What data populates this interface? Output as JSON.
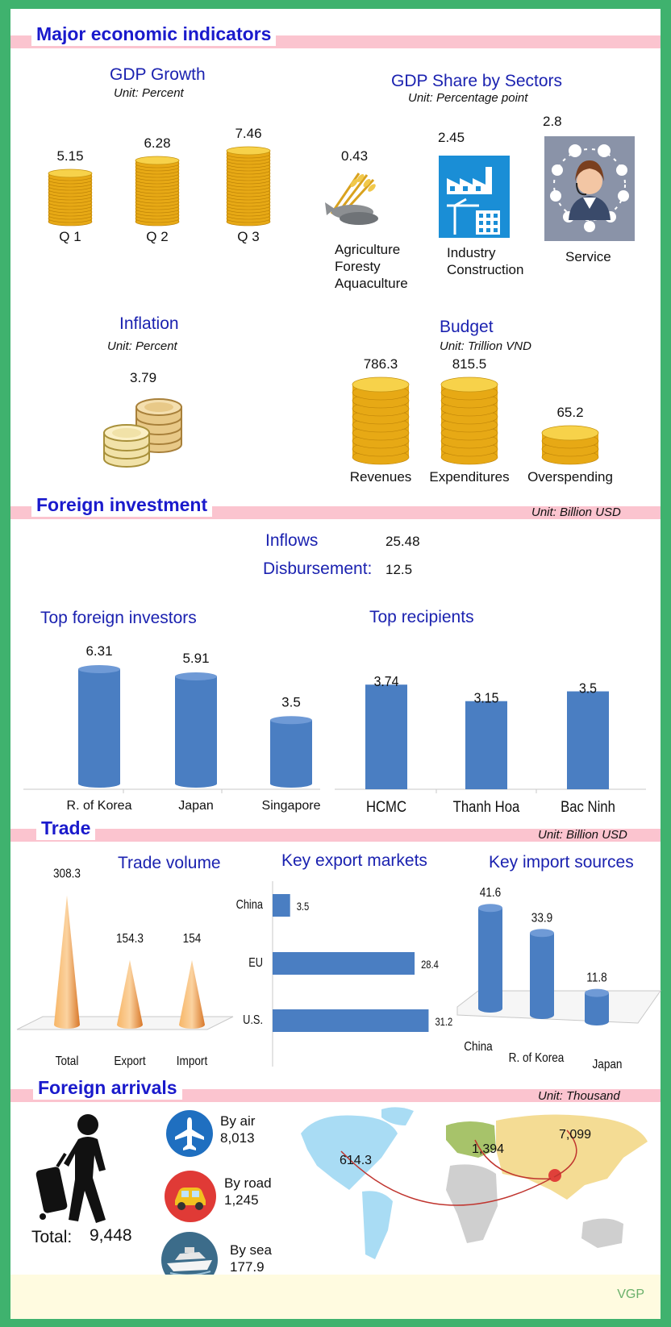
{
  "sections": {
    "economic": "Major economic indicators",
    "investment": "Foreign investment",
    "investment_unit": "Unit: Billion USD",
    "trade": "Trade",
    "trade_unit": "Unit: Billion USD",
    "arrivals": "Foreign arrivals",
    "arrivals_unit": "Unit: Thousand"
  },
  "gdp": {
    "title": "GDP Growth",
    "unit": "Unit: Percent",
    "items": [
      {
        "label": "Q 1",
        "value": "5.15"
      },
      {
        "label": "Q 2",
        "value": "6.28"
      },
      {
        "label": "Q 3",
        "value": "7.46"
      }
    ]
  },
  "sectors": {
    "title": "GDP Share by Sectors",
    "unit": "Unit: Percentage point",
    "items": [
      {
        "label_lines": [
          "Agriculture",
          "Foresty",
          "Aquaculture"
        ],
        "value": "0.43",
        "icon": "agriculture-icon"
      },
      {
        "label_lines": [
          "Industry",
          "Construction"
        ],
        "value": "2.45",
        "icon": "factory-icon"
      },
      {
        "label_lines": [
          "Service"
        ],
        "value": "2.8",
        "icon": "service-operator-icon"
      }
    ]
  },
  "inflation": {
    "title": "Inflation",
    "unit": "Unit: Percent",
    "value": "3.79"
  },
  "budget": {
    "title": "Budget",
    "unit": "Unit: Trillion VND",
    "items": [
      {
        "label": "Revenues",
        "value": "786.3"
      },
      {
        "label": "Expenditures",
        "value": "815.5"
      },
      {
        "label": "Overspending",
        "value": "65.2"
      }
    ]
  },
  "fdi": {
    "inflows_label": "Inflows",
    "inflows_value": "25.48",
    "disb_label": "Disbursement:",
    "disb_value": "12.5"
  },
  "chart_data": [
    {
      "type": "bar",
      "title": "GDP Growth",
      "categories": [
        "Q 1",
        "Q 2",
        "Q 3"
      ],
      "values": [
        5.15,
        6.28,
        7.46
      ]
    },
    {
      "type": "bar",
      "title": "GDP Share by Sectors",
      "categories": [
        "Agriculture Foresty Aquaculture",
        "Industry Construction",
        "Service"
      ],
      "values": [
        0.43,
        2.45,
        2.8
      ]
    },
    {
      "type": "bar",
      "title": "Budget",
      "categories": [
        "Revenues",
        "Expenditures",
        "Overspending"
      ],
      "values": [
        786.3,
        815.5,
        65.2
      ]
    },
    {
      "type": "bar",
      "title": "Top foreign investors",
      "categories": [
        "R. of Korea",
        "Japan",
        "Singapore"
      ],
      "values": [
        6.31,
        5.91,
        3.5
      ]
    },
    {
      "type": "bar",
      "title": "Top recipients",
      "categories": [
        "HCMC",
        "Thanh Hoa",
        "Bac Ninh"
      ],
      "values": [
        3.74,
        3.15,
        3.5
      ]
    },
    {
      "type": "bar",
      "title": "Trade volume",
      "categories": [
        "Total",
        "Export",
        "Import"
      ],
      "values": [
        308.3,
        154.3,
        154
      ]
    },
    {
      "type": "bar",
      "title": "Key export markets",
      "orientation": "horizontal",
      "categories": [
        "China",
        "EU",
        "U.S."
      ],
      "values": [
        3.5,
        28.4,
        31.2
      ]
    },
    {
      "type": "bar",
      "title": "Key import sources",
      "categories": [
        "China",
        "R. of Korea",
        "Japan"
      ],
      "values": [
        41.6,
        33.9,
        11.8
      ]
    }
  ],
  "arrivals": {
    "total_label": "Total:",
    "total_value": "9,448",
    "modes": [
      {
        "label": "By air",
        "value": "8,013",
        "icon": "airplane-icon",
        "color": "#1f6fc0"
      },
      {
        "label": "By road",
        "value": "1,245",
        "icon": "car-icon",
        "color": "#e03a36"
      },
      {
        "label": "By sea",
        "value": "177.9",
        "icon": "ship-icon",
        "color": "#3c6c8a"
      }
    ],
    "map_values": [
      "614.3",
      "1,394",
      "7,099"
    ]
  },
  "colors": {
    "bar": "#4a7ec2",
    "coin": "#f2c12e",
    "cone": "#f0a040",
    "title": "#1a1acc",
    "band": "#fbc4cf"
  },
  "footer": "VGP"
}
